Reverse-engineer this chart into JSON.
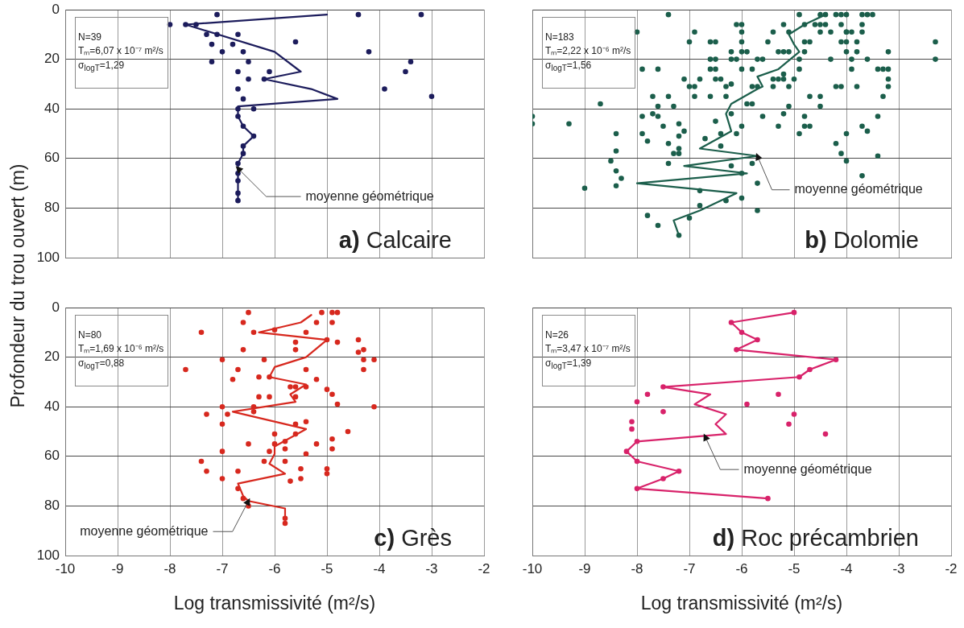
{
  "chart_data": [
    {
      "type": "scatter",
      "title": "a) Calcaire",
      "ylabel": "Profondeur du trou ouvert (m)",
      "annotations": [
        "N=39",
        "Tₘ=6,07 x 10⁻⁷ m²/s",
        "σ$_{logT}$=1,29",
        {
          "text": "moyenne géométrique",
          "x": -6.7,
          "y": 64
        }
      ],
      "xlim": [
        -10,
        -2
      ],
      "ylim": [
        100,
        0
      ],
      "xticks": [
        -10,
        -9,
        -8,
        -7,
        -6,
        -5,
        -4,
        -3,
        -2
      ],
      "yticks": [
        0,
        20,
        40,
        60,
        80,
        100
      ],
      "grid": true,
      "marker": "circle",
      "tick_labels": "y",
      "series": [
        {
          "type": "line",
          "marker": "none",
          "color": "#1c1c5c",
          "x": [
            -5.0,
            -7.7,
            -6.0,
            -5.5,
            -6.2,
            -5.3,
            -4.8,
            -6.7,
            -6.7,
            -6.6,
            -6.4,
            -6.6,
            -6.6,
            -6.7,
            -6.7,
            -6.7,
            -6.7,
            -6.7
          ],
          "values": [
            2,
            6,
            17,
            25,
            28,
            32,
            36,
            39,
            43,
            47,
            51,
            55,
            58,
            62,
            66,
            69,
            74,
            77
          ]
        },
        {
          "type": "scatter",
          "color": "#1c1c5c",
          "x": [
            -7.1,
            -4.4,
            -3.2,
            -8.0,
            -7.7,
            -7.5,
            -7.3,
            -7.1,
            -6.7,
            -7.2,
            -6.8,
            -5.6,
            -7.0,
            -6.6,
            -4.2,
            -7.2,
            -6.5,
            -3.4,
            -6.7,
            -6.1,
            -3.5,
            -6.5,
            -6.2,
            -6.7,
            -3.9,
            -6.6,
            -3.0,
            -6.7,
            -6.4,
            -6.7,
            -6.6,
            -6.4,
            -6.6,
            -6.6,
            -6.7,
            -6.7,
            -6.7,
            -6.7,
            -6.7
          ],
          "values": [
            2,
            2,
            2,
            6,
            6,
            6,
            10,
            10,
            10,
            14,
            14,
            13,
            17,
            17,
            17,
            21,
            21,
            21,
            25,
            25,
            25,
            28,
            28,
            32,
            32,
            36,
            35,
            40,
            40,
            43,
            47,
            51,
            55,
            58,
            62,
            66,
            69,
            74,
            77
          ]
        }
      ]
    },
    {
      "type": "scatter",
      "title": "b) Dolomie",
      "annotations": [
        "N=183",
        "Tₘ=2,22 x 10⁻⁶ m²/s",
        "σ$_{logT}$=1,56",
        {
          "text": "moyenne géométrique",
          "x": -5.7,
          "y": 59
        }
      ],
      "xlim": [
        -10,
        -2
      ],
      "ylim": [
        100,
        0
      ],
      "xticks": [
        -10,
        -9,
        -8,
        -7,
        -6,
        -5,
        -4,
        -3,
        -2
      ],
      "yticks": [
        0,
        20,
        40,
        60,
        80,
        100
      ],
      "grid": true,
      "marker": "circle",
      "tick_labels": false,
      "series": [
        {
          "type": "line",
          "marker": "none",
          "color": "#1b5e4b",
          "x": [
            -4.4,
            -4.8,
            -5.1,
            -5.0,
            -4.9,
            -5.3,
            -5.7,
            -5.6,
            -5.7,
            -6.2,
            -6.3,
            -6.2,
            -6.8,
            -5.7,
            -7.1,
            -5.9,
            -8.0,
            -6.1,
            -6.8,
            -7.3,
            -7.2
          ],
          "values": [
            2,
            6,
            10,
            14,
            17,
            24,
            27,
            31,
            32,
            38,
            42,
            49,
            56,
            59,
            63,
            66,
            70,
            74,
            81,
            85,
            91
          ]
        },
        {
          "type": "scatter",
          "color": "#1b5e4b",
          "x": [
            -7.4,
            -4.9,
            -4.5,
            -4.4,
            -4.2,
            -4.1,
            -4.0,
            -3.7,
            -3.6,
            -3.5,
            -6.1,
            -6.0,
            -5.2,
            -4.8,
            -4.6,
            -4.5,
            -4.4,
            -4.1,
            -3.7,
            -8.0,
            -6.9,
            -6.0,
            -5.4,
            -5.1,
            -4.5,
            -4.3,
            -4.0,
            -4.0,
            -3.9,
            -3.7,
            -7.0,
            -6.6,
            -6.5,
            -6.0,
            -5.5,
            -4.8,
            -4.7,
            -4.1,
            -4.0,
            -3.8,
            -2.3,
            -6.2,
            -6.0,
            -5.9,
            -5.3,
            -5.2,
            -5.1,
            -4.8,
            -4.0,
            -3.8,
            -3.2,
            -6.6,
            -6.5,
            -6.2,
            -6.1,
            -5.7,
            -5.6,
            -4.9,
            -4.3,
            -3.9,
            -3.6,
            -2.3,
            -7.9,
            -7.6,
            -6.6,
            -6.5,
            -6.0,
            -5.8,
            -4.9,
            -3.9,
            -3.4,
            -3.3,
            -3.2,
            -5.2,
            -7.1,
            -6.8,
            -6.5,
            -6.4,
            -5.4,
            -5.3,
            -5.2,
            -5.0,
            -3.2,
            -6.2,
            -5.8,
            -7.0,
            -6.9,
            -6.3,
            -5.7,
            -5.4,
            -5.1,
            -4.2,
            -4.1,
            -3.8,
            -3.2,
            -7.7,
            -7.4,
            -6.9,
            -6.6,
            -6.3,
            -4.7,
            -4.5,
            -3.3,
            -8.7,
            -5.9,
            -5.8,
            -4.5,
            -5.1,
            -7.6,
            -7.3,
            -7.7,
            -6.2,
            -5.2,
            -3.4,
            -10.0,
            -5.6,
            -7.6,
            -7.9,
            -4.8,
            -10.0,
            -9.3,
            -7.2,
            -6.5,
            -6.0,
            -5.3,
            -4.8,
            -4.7,
            -3.7,
            -7.5,
            -8.4,
            -7.1,
            -3.6,
            -7.9,
            -7.2,
            -6.4,
            -6.1,
            -4.9,
            -4.0,
            -7.8,
            -6.7,
            -7.4,
            -6.4,
            -4.2,
            -8.4,
            -7.2,
            -7.3,
            -7.2,
            -4.1,
            -3.4,
            -8.5,
            -7.4,
            -5.8,
            -6.2,
            -4.0,
            -8.4,
            -6.0,
            -3.7,
            -8.3,
            -8.4,
            -5.7,
            -9.0,
            -6.8,
            -6.0,
            -6.3,
            -6.8,
            -5.7,
            -7.8,
            -7.0,
            -7.6,
            -7.2
          ],
          "values": [
            2,
            2,
            2,
            2,
            2,
            2,
            2,
            2,
            2,
            2,
            6,
            6,
            6,
            6,
            6,
            6,
            6,
            6,
            6,
            9,
            9,
            9,
            9,
            9,
            9,
            9,
            9,
            9,
            9,
            9,
            13,
            13,
            13,
            13,
            13,
            13,
            13,
            13,
            13,
            13,
            13,
            17,
            17,
            17,
            17,
            17,
            17,
            17,
            17,
            17,
            17,
            20,
            20,
            20,
            20,
            20,
            20,
            20,
            20,
            20,
            20,
            20,
            24,
            24,
            24,
            24,
            24,
            24,
            24,
            24,
            24,
            24,
            24,
            26,
            28,
            28,
            28,
            28,
            28,
            28,
            28,
            28,
            28,
            30,
            31,
            31,
            31,
            31,
            31,
            31,
            31,
            31,
            31,
            31,
            31,
            35,
            35,
            35,
            35,
            35,
            35,
            35,
            35,
            38,
            38,
            38,
            39,
            39,
            39,
            39,
            42,
            42,
            42,
            43,
            43,
            43,
            43,
            43,
            43,
            46,
            46,
            46,
            45,
            47,
            47,
            47,
            47,
            47,
            47,
            50,
            49,
            49,
            50,
            51,
            50,
            50,
            50,
            50,
            53,
            52,
            54,
            55,
            54,
            57,
            56,
            58,
            58,
            58,
            59,
            61,
            62,
            62,
            63,
            61,
            65,
            66,
            67,
            68,
            71,
            70,
            72,
            73,
            76,
            77,
            79,
            81,
            83,
            84,
            87,
            91
          ]
        }
      ]
    },
    {
      "type": "scatter",
      "title": "c) Grès",
      "xlabel": "Log transmissivité (m²/s)",
      "annotations": [
        "N=80",
        "Tₘ=1,69 x 10⁻⁶ m²/s",
        "σ$_{logT}$=0,88",
        {
          "text": "moyenne géométrique",
          "x": -6.5,
          "y": 78
        }
      ],
      "xlim": [
        -10,
        -2
      ],
      "ylim": [
        100,
        0
      ],
      "xticks": [
        -10,
        -9,
        -8,
        -7,
        -6,
        -5,
        -4,
        -3,
        -2
      ],
      "yticks": [
        0,
        20,
        40,
        60,
        80,
        100
      ],
      "grid": true,
      "marker": "circle",
      "series": [
        {
          "type": "line",
          "marker": "none",
          "color": "#d7281e",
          "x": [
            -5.3,
            -5.5,
            -6.3,
            -5.0,
            -5.4,
            -6.0,
            -6.1,
            -5.4,
            -5.7,
            -5.6,
            -6.8,
            -5.4,
            -6.0,
            -6.0,
            -6.1,
            -5.8,
            -6.7,
            -6.6,
            -6.5,
            -5.8,
            -5.8
          ],
          "values": [
            3,
            6,
            10,
            13,
            20,
            24,
            28,
            31,
            35,
            38,
            42,
            49,
            56,
            59,
            63,
            67,
            71,
            76,
            78,
            81,
            85
          ]
        },
        {
          "type": "scatter",
          "color": "#d7281e",
          "x": [
            -6.5,
            -5.1,
            -4.9,
            -4.8,
            -6.6,
            -5.2,
            -4.9,
            -7.4,
            -6.4,
            -6.0,
            -5.4,
            -5.6,
            -5.0,
            -4.8,
            -4.4,
            -6.6,
            -5.6,
            -4.4,
            -4.3,
            -7.0,
            -6.2,
            -4.3,
            -4.1,
            -7.7,
            -6.7,
            -5.4,
            -4.3,
            -6.8,
            -6.3,
            -6.1,
            -5.2,
            -5.7,
            -5.6,
            -5.4,
            -5.0,
            -6.3,
            -6.1,
            -5.6,
            -4.9,
            -4.8,
            -7.0,
            -6.4,
            -4.1,
            -6.4,
            -7.3,
            -6.9,
            -7.0,
            -5.6,
            -5.4,
            -6.0,
            -5.6,
            -4.6,
            -6.5,
            -6.0,
            -5.8,
            -5.2,
            -4.9,
            -5.8,
            -4.9,
            -7.0,
            -6.1,
            -5.4,
            -6.2,
            -7.4,
            -5.8,
            -7.3,
            -6.7,
            -5.5,
            -5.0,
            -5.0,
            -7.0,
            -5.7,
            -5.5,
            -6.7,
            -6.6,
            -6.5,
            -5.8,
            -5.8
          ],
          "values": [
            2,
            2,
            2,
            2,
            6,
            6,
            6,
            10,
            10,
            9,
            10,
            14,
            13,
            14,
            13,
            17,
            17,
            18,
            17,
            21,
            21,
            21,
            21,
            25,
            25,
            25,
            25,
            29,
            28,
            28,
            29,
            32,
            32,
            32,
            33,
            36,
            36,
            36,
            35,
            39,
            40,
            40,
            40,
            42,
            43,
            43,
            47,
            47,
            46,
            51,
            51,
            50,
            55,
            55,
            54,
            55,
            53,
            57,
            57,
            58,
            58,
            59,
            62,
            62,
            62,
            66,
            66,
            65,
            65,
            67,
            69,
            70,
            69,
            73,
            77,
            80,
            85,
            87
          ]
        }
      ]
    },
    {
      "type": "scatter",
      "title": "d) Roc précambrien",
      "xlabel": "Log transmissivité (m²/s)",
      "annotations": [
        "N=26",
        "Tₘ=3,47 x 10⁻⁷ m²/s",
        "σ$_{logT}$=1,39",
        {
          "text": "moyenne géométrique",
          "x": -6.7,
          "y": 52
        }
      ],
      "xlim": [
        -10,
        -2
      ],
      "ylim": [
        100,
        0
      ],
      "xticks": [
        -10,
        -9,
        -8,
        -7,
        -6,
        -5,
        -4,
        -3,
        -2
      ],
      "yticks": [
        0,
        20,
        40,
        60,
        80,
        100
      ],
      "grid": true,
      "marker": "circle",
      "tick_labels": "x",
      "series": [
        {
          "type": "line",
          "marker": "none",
          "color": "#d8226a",
          "x": [
            -5.0,
            -6.2,
            -6.0,
            -5.7,
            -6.1,
            -4.2,
            -4.7,
            -4.9,
            -7.5,
            -6.6,
            -6.9,
            -6.3,
            -6.5,
            -6.3,
            -8.0,
            -8.2,
            -8.0,
            -7.2,
            -7.5,
            -8.0,
            -5.5
          ],
          "values": [
            2,
            6,
            10,
            13,
            17,
            21,
            25,
            28,
            32,
            35,
            39,
            43,
            47,
            51,
            54,
            58,
            62,
            66,
            69,
            73,
            77
          ]
        },
        {
          "type": "scatter",
          "color": "#d8226a",
          "x": [
            -5.0,
            -6.2,
            -6.0,
            -5.7,
            -6.1,
            -4.2,
            -4.7,
            -4.9,
            -7.5,
            -8.0,
            -8.2,
            -8.0,
            -7.2,
            -7.5,
            -8.0,
            -5.5,
            -7.8,
            -5.3,
            -8.0,
            -5.9,
            -7.5,
            -5.0,
            -8.1,
            -5.1,
            -8.1,
            -4.4
          ],
          "values": [
            2,
            6,
            10,
            13,
            17,
            21,
            25,
            28,
            32,
            54,
            58,
            62,
            66,
            69,
            73,
            77,
            35,
            35,
            38,
            39,
            42,
            43,
            46,
            47,
            49,
            51
          ]
        }
      ]
    }
  ]
}
